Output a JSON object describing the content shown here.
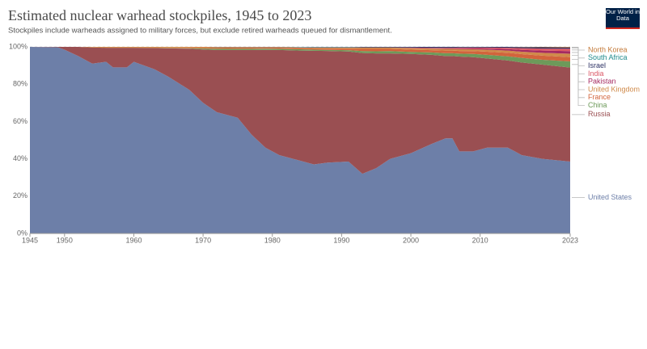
{
  "chart_data": {
    "type": "stacked_area",
    "title": "Estimated nuclear warhead stockpiles, 1945 to 2023",
    "subtitle": "Stockpiles include warheads assigned to military forces, but exclude retired warheads queued for dismantlement.",
    "logo": "Our World in Data",
    "x": [
      1945,
      1949,
      1950,
      1952,
      1954,
      1956,
      1957,
      1959,
      1960,
      1963,
      1965,
      1968,
      1970,
      1972,
      1975,
      1977,
      1979,
      1981,
      1984,
      1986,
      1988,
      1991,
      1993,
      1995,
      1997,
      2000,
      2003,
      2005,
      2006,
      2007,
      2009,
      2011,
      2014,
      2016,
      2019,
      2023
    ],
    "xlim": [
      1945,
      2023
    ],
    "xticks": [
      1945,
      1950,
      1960,
      1970,
      1980,
      1990,
      2000,
      2010,
      2023
    ],
    "ylim": [
      0,
      100
    ],
    "yticks": [
      {
        "value": 0,
        "label": "0%"
      },
      {
        "value": 20,
        "label": "20%"
      },
      {
        "value": 40,
        "label": "40%"
      },
      {
        "value": 60,
        "label": "60%"
      },
      {
        "value": 80,
        "label": "80%"
      },
      {
        "value": 100,
        "label": "100%"
      }
    ],
    "grid": true,
    "series": [
      {
        "name": "United States",
        "color": "#6d7fa8",
        "values": [
          100,
          99.8,
          98.5,
          95,
          91,
          92,
          89,
          89,
          92,
          88,
          84,
          77,
          70,
          65,
          62,
          53,
          46,
          42,
          39,
          37,
          38,
          38.5,
          32,
          35,
          40,
          43,
          48,
          51,
          51,
          44,
          44,
          46,
          46,
          42,
          40,
          38.5
        ]
      },
      {
        "name": "Russia",
        "color": "#9a4f52",
        "values": [
          0,
          0.2,
          1.5,
          5,
          8.7,
          7.5,
          10.5,
          10.5,
          7.5,
          11.4,
          15.2,
          22,
          28.6,
          33.3,
          36.3,
          45.3,
          52.4,
          56.3,
          59.0,
          60.9,
          59.8,
          59.0,
          64.7,
          61.5,
          56.5,
          53.2,
          47.7,
          44.1,
          44.1,
          50.8,
          50.5,
          47.8,
          46.7,
          49.6,
          50.5,
          50.4
        ]
      },
      {
        "name": "China",
        "color": "#6d9a5a",
        "values": [
          0,
          0,
          0,
          0,
          0,
          0,
          0,
          0,
          0,
          0,
          0.1,
          0.2,
          0.5,
          0.6,
          0.6,
          0.6,
          0.6,
          0.6,
          0.7,
          0.6,
          0.6,
          0.7,
          1,
          1.1,
          1.2,
          1.1,
          1.3,
          1.5,
          1.5,
          1.6,
          1.7,
          1.9,
          2.2,
          2.5,
          2.6,
          3.3
        ]
      },
      {
        "name": "France",
        "color": "#d2643c",
        "values": [
          0,
          0,
          0,
          0,
          0,
          0,
          0,
          0,
          0,
          0,
          0.1,
          0.2,
          0.3,
          0.4,
          0.5,
          0.5,
          0.5,
          0.6,
          0.6,
          0.6,
          0.7,
          0.8,
          1.2,
          1.3,
          1.2,
          1.2,
          1.2,
          1.4,
          1.4,
          1.4,
          1.5,
          1.7,
          1.9,
          2,
          2.2,
          2.3
        ]
      },
      {
        "name": "United Kingdom",
        "color": "#d08a4a",
        "values": [
          0,
          0,
          0,
          0,
          0.3,
          0.5,
          0.5,
          0.5,
          0.5,
          0.6,
          0.6,
          0.6,
          0.6,
          0.6,
          0.5,
          0.5,
          0.4,
          0.4,
          0.4,
          0.5,
          0.5,
          0.6,
          0.8,
          0.8,
          0.8,
          0.8,
          0.9,
          0.9,
          0.9,
          1,
          1,
          1.1,
          1.2,
          1.3,
          1.5,
          1.8
        ]
      },
      {
        "name": "Pakistan",
        "color": "#a52a62",
        "values": [
          0,
          0,
          0,
          0,
          0,
          0,
          0,
          0,
          0,
          0,
          0,
          0,
          0,
          0,
          0,
          0,
          0,
          0,
          0,
          0,
          0,
          0,
          0,
          0,
          0,
          0.1,
          0.2,
          0.3,
          0.3,
          0.4,
          0.5,
          0.6,
          0.8,
          1,
          1.2,
          1.4
        ]
      },
      {
        "name": "India",
        "color": "#dc5866",
        "values": [
          0,
          0,
          0,
          0,
          0,
          0,
          0,
          0,
          0,
          0,
          0,
          0,
          0,
          0,
          0,
          0,
          0,
          0,
          0,
          0,
          0,
          0,
          0,
          0,
          0,
          0.2,
          0.2,
          0.3,
          0.3,
          0.4,
          0.4,
          0.5,
          0.7,
          0.9,
          1.1,
          1.3
        ]
      },
      {
        "name": "Israel",
        "color": "#2d3264",
        "values": [
          0,
          0,
          0,
          0,
          0,
          0,
          0,
          0,
          0,
          0,
          0,
          0,
          0,
          0.1,
          0.1,
          0.1,
          0.1,
          0.1,
          0.1,
          0.2,
          0.2,
          0.2,
          0.3,
          0.3,
          0.3,
          0.4,
          0.5,
          0.5,
          0.5,
          0.4,
          0.4,
          0.4,
          0.5,
          0.6,
          0.7,
          0.7
        ]
      },
      {
        "name": "South Africa",
        "color": "#1f8a8c",
        "values": [
          0,
          0,
          0,
          0,
          0,
          0,
          0,
          0,
          0,
          0,
          0,
          0,
          0,
          0,
          0,
          0,
          0,
          0,
          0.1,
          0.1,
          0.1,
          0.1,
          0,
          0,
          0,
          0,
          0,
          0,
          0,
          0,
          0,
          0,
          0,
          0,
          0,
          0
        ]
      },
      {
        "name": "North Korea",
        "color": "#c47a3a",
        "values": [
          0,
          0,
          0,
          0,
          0,
          0,
          0,
          0,
          0,
          0,
          0,
          0,
          0,
          0,
          0,
          0,
          0,
          0,
          0,
          0,
          0,
          0,
          0,
          0,
          0,
          0,
          0,
          0,
          0,
          0,
          0,
          0,
          0,
          0.1,
          0.2,
          0.3
        ]
      }
    ]
  }
}
